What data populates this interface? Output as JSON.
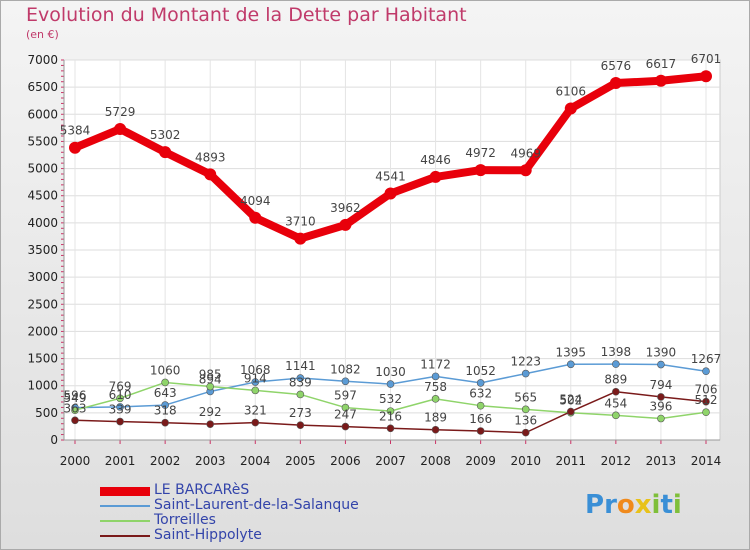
{
  "title": "Evolution du Montant de la Dette par Habitant",
  "subtitle": "(en €)",
  "logo": {
    "text": "Proxiti",
    "letters": [
      {
        "ch": "P",
        "color": "#3a8fd6"
      },
      {
        "ch": "r",
        "color": "#3a8fd6"
      },
      {
        "ch": "o",
        "color": "#f08a1c"
      },
      {
        "ch": "x",
        "color": "#e8c21a"
      },
      {
        "ch": "i",
        "color": "#7fbf3a"
      },
      {
        "ch": "t",
        "color": "#3a8fd6"
      },
      {
        "ch": "i",
        "color": "#7fbf3a"
      }
    ]
  },
  "chart_data": {
    "type": "line",
    "title": "Evolution du Montant de la Dette par Habitant",
    "subtitle": "(en €)",
    "xlabel": "",
    "ylabel": "",
    "x": [
      "2000",
      "2001",
      "2002",
      "2003",
      "2004",
      "2005",
      "2006",
      "2007",
      "2008",
      "2009",
      "2010",
      "2011",
      "2012",
      "2013",
      "2014"
    ],
    "ylim": [
      0,
      7000
    ],
    "yticks": [
      0,
      500,
      1000,
      1500,
      2000,
      2500,
      3000,
      3500,
      4000,
      4500,
      5000,
      5500,
      6000,
      6500,
      7000
    ],
    "grid": true,
    "legend_position": "bottom-left",
    "series": [
      {
        "name": "LE BARCARèS",
        "color": "#e8000b",
        "emphasis": true,
        "values": [
          5384,
          5729,
          5302,
          4893,
          4094,
          3710,
          3962,
          4541,
          4846,
          4972,
          4969,
          6106,
          6576,
          6617,
          6701
        ],
        "labels": [
          "5384",
          "5729",
          "5302",
          "4893",
          "4094",
          "3710",
          "3962",
          "4541",
          "4846",
          "4972",
          "4969",
          "6106",
          "6576",
          "6617",
          "6701"
        ]
      },
      {
        "name": "Saint-Laurent-de-la-Salanque",
        "color": "#5b9bd5",
        "values": [
          596,
          610,
          643,
          894,
          1068,
          1141,
          1082,
          1030,
          1172,
          1052,
          1223,
          1395,
          1398,
          1390,
          1267
        ],
        "labels": [
          "596",
          "610",
          "643",
          "894",
          "1068",
          "1141",
          "1082",
          "1030",
          "1172",
          "1052",
          "1223",
          "1395",
          "1398",
          "1390",
          "1267"
        ]
      },
      {
        "name": "Torreilles",
        "color": "#8fd46a",
        "values": [
          549,
          769,
          1060,
          985,
          914,
          839,
          597,
          532,
          758,
          632,
          565,
          502,
          454,
          396,
          512
        ],
        "labels": [
          "549",
          "769",
          "1060",
          "985",
          "914",
          "839",
          "597",
          "532",
          "758",
          "632",
          "565",
          "502",
          "454",
          "396",
          "512"
        ]
      },
      {
        "name": "Saint-Hippolyte",
        "color": "#7a1a1a",
        "values": [
          363,
          339,
          318,
          292,
          321,
          273,
          247,
          216,
          189,
          166,
          136,
          524,
          889,
          794,
          706
        ],
        "labels": [
          "363",
          "339",
          "318",
          "292",
          "321",
          "273",
          "247",
          "216",
          "189",
          "166",
          "136",
          "524",
          "889",
          "794",
          "706"
        ]
      }
    ]
  }
}
